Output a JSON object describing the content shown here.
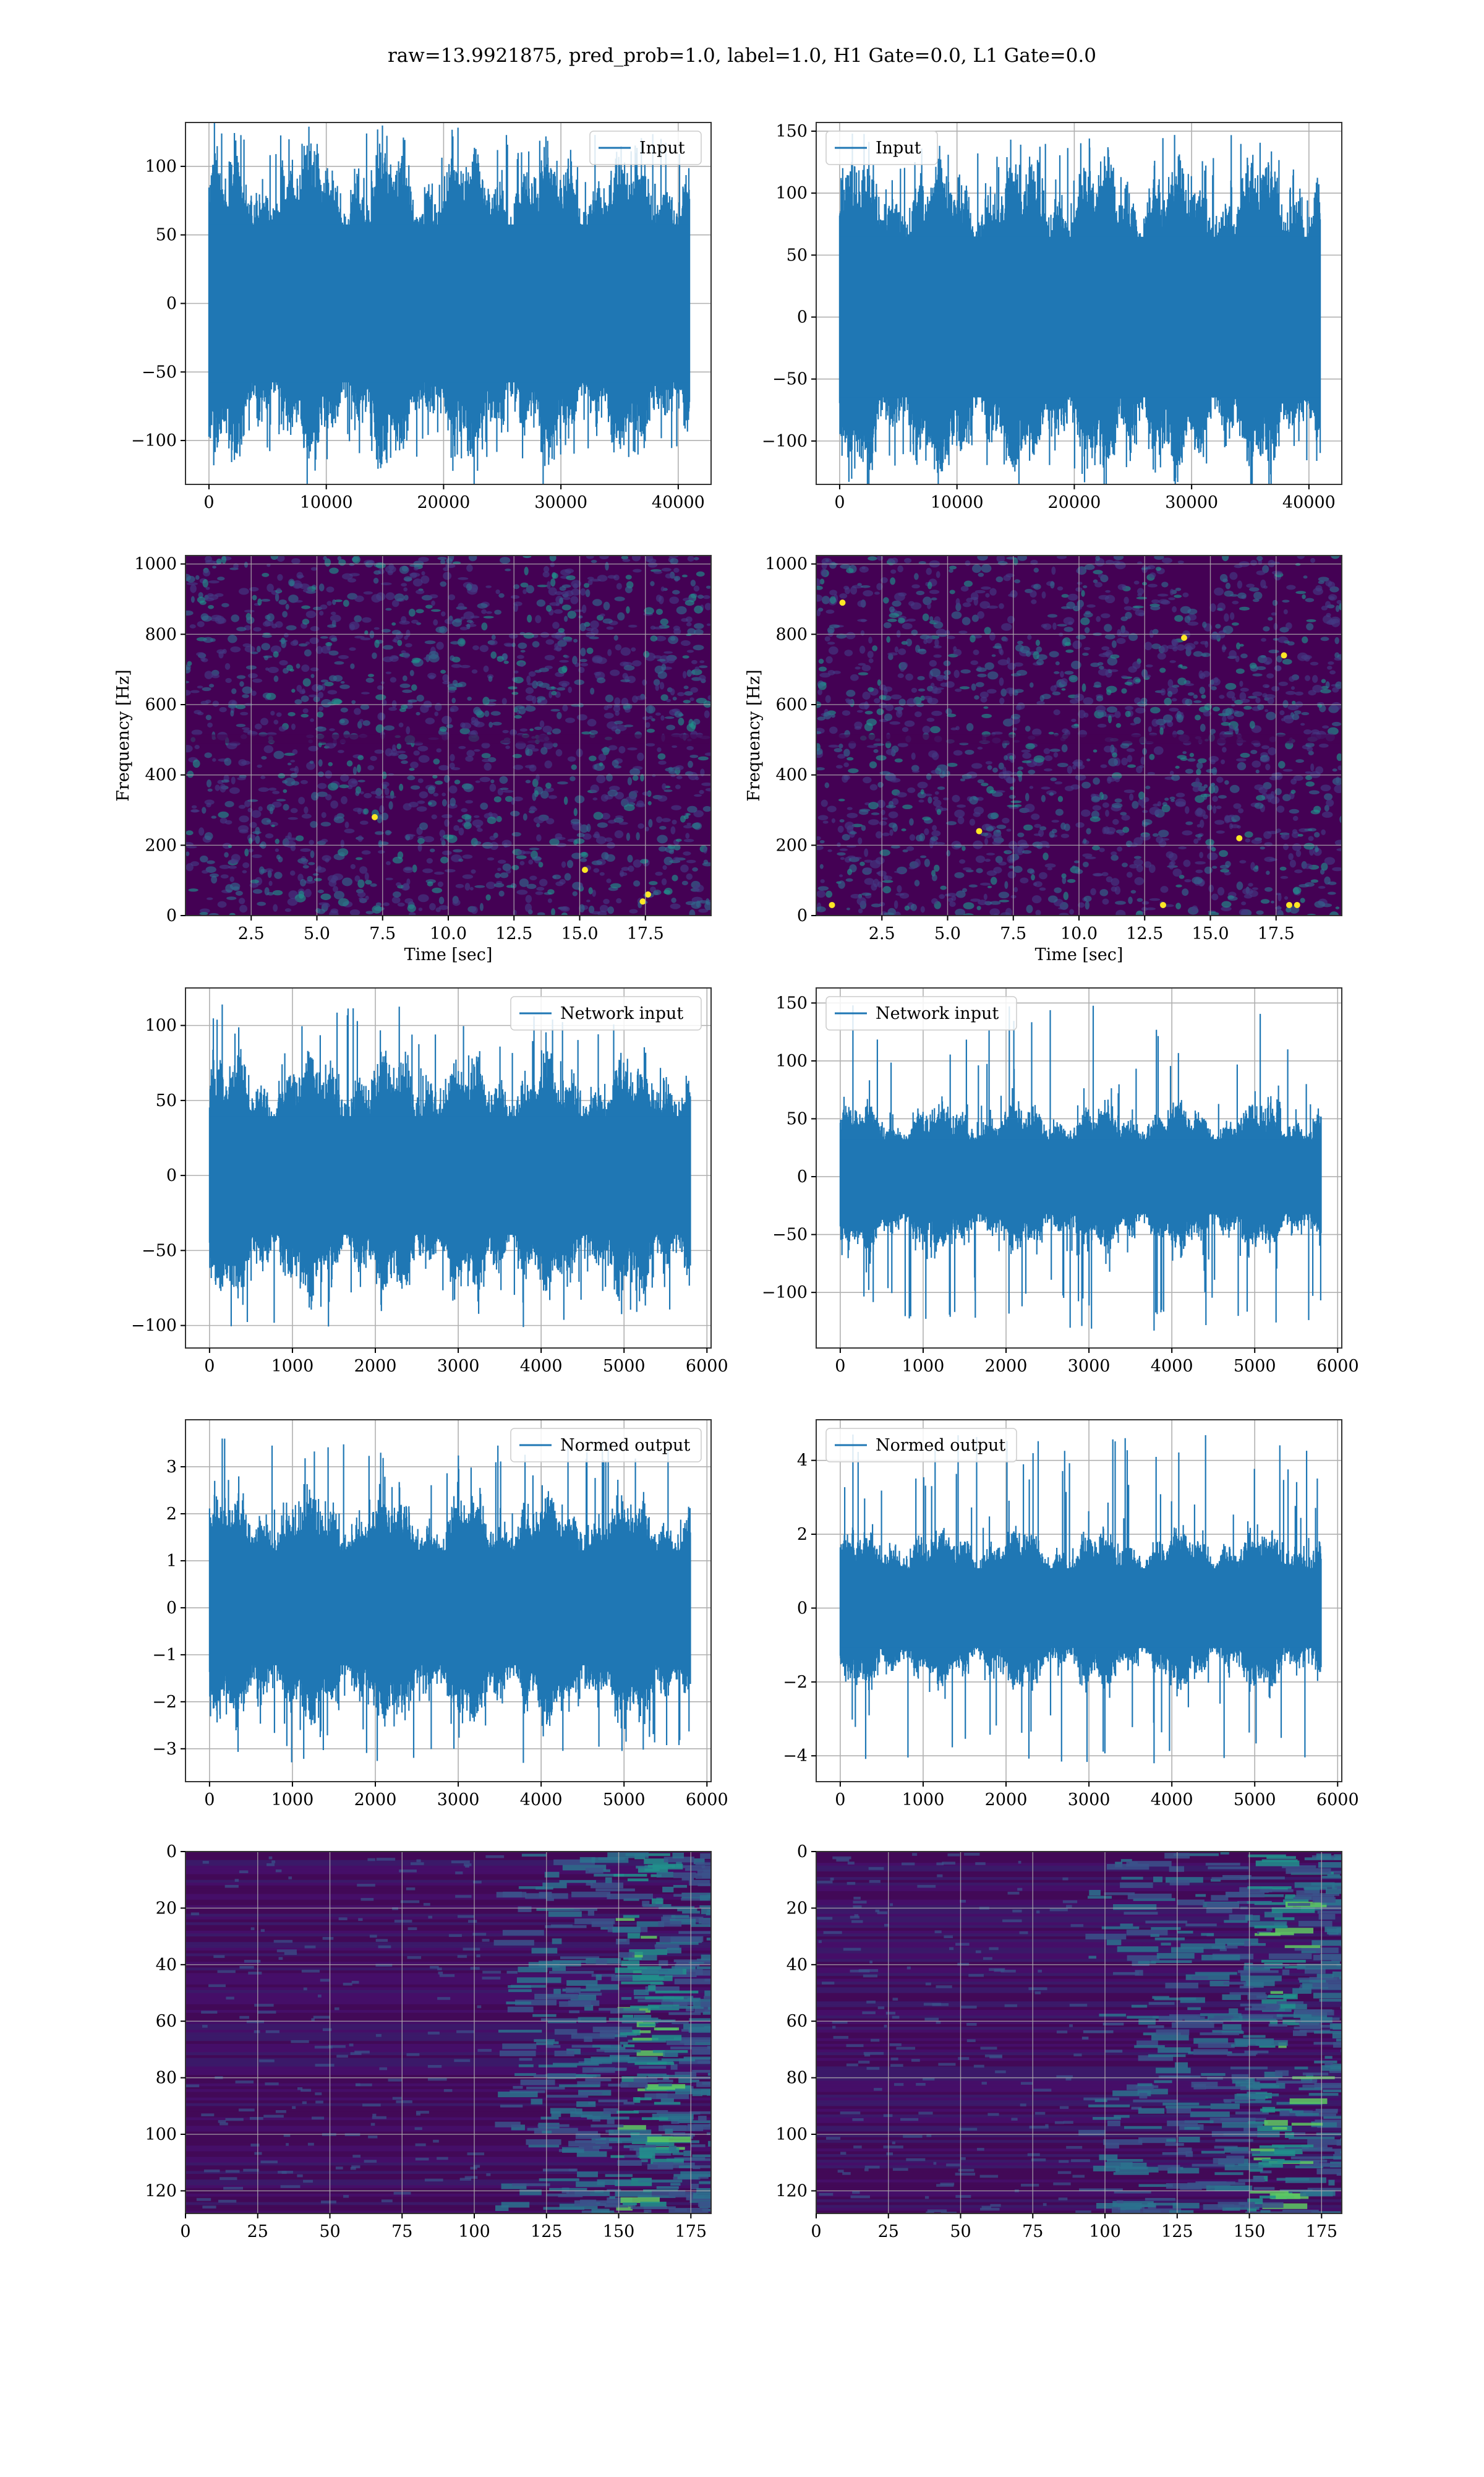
{
  "figure": {
    "suptitle": "raw=13.9921875, pred_prob=1.0, label=1.0, H1 Gate=0.0, L1 Gate=0.0"
  },
  "colors": {
    "series": "#1f77b4",
    "grid": "#b0b0b0",
    "heat_low": "#440154",
    "heat_mid": "#21918c",
    "heat_high": "#fde725"
  },
  "chart_data": [
    {
      "id": "h1-input",
      "type": "line",
      "row": 0,
      "col": 0,
      "legend": [
        "Input"
      ],
      "legend_loc": "upper right",
      "xlim": [
        -2000,
        42800
      ],
      "ylim": [
        -132,
        132
      ],
      "xticks": [
        0,
        10000,
        20000,
        30000,
        40000
      ],
      "xtick_labels": [
        "0",
        "10000",
        "20000",
        "30000",
        "40000"
      ],
      "yticks": [
        -100,
        -50,
        0,
        50,
        100
      ],
      "ytick_labels": [
        "−100",
        "−50",
        "0",
        "50",
        "100"
      ],
      "x_range": [
        0,
        40960
      ],
      "envelope": 80,
      "peak_max": 124,
      "peak_min": -113,
      "grid": true
    },
    {
      "id": "l1-input",
      "type": "line",
      "row": 0,
      "col": 1,
      "legend": [
        "Input"
      ],
      "legend_loc": "upper left",
      "xlim": [
        -2000,
        42800
      ],
      "ylim": [
        -135,
        157
      ],
      "xticks": [
        0,
        10000,
        20000,
        30000,
        40000
      ],
      "xtick_labels": [
        "0",
        "10000",
        "20000",
        "30000",
        "40000"
      ],
      "yticks": [
        -100,
        -50,
        0,
        50,
        100,
        150
      ],
      "ytick_labels": [
        "−100",
        "−50",
        "0",
        "50",
        "100",
        "150"
      ],
      "x_range": [
        0,
        40960
      ],
      "envelope": 90,
      "peak_max": 148,
      "peak_min": -123,
      "grid": true
    },
    {
      "id": "h1-spectrogram",
      "type": "heatmap",
      "row": 1,
      "col": 0,
      "xlabel": "Time [sec]",
      "ylabel": "Frequency [Hz]",
      "xlim": [
        0,
        20
      ],
      "ylim": [
        0,
        1024
      ],
      "xticks": [
        2.5,
        5.0,
        7.5,
        10.0,
        12.5,
        15.0,
        17.5
      ],
      "xtick_labels": [
        "2.5",
        "5.0",
        "7.5",
        "10.0",
        "12.5",
        "15.0",
        "17.5"
      ],
      "yticks": [
        0,
        200,
        400,
        600,
        800,
        1000
      ],
      "ytick_labels": [
        "0",
        "200",
        "400",
        "600",
        "800",
        "1000"
      ],
      "hot_spots": [
        [
          17.6,
          60
        ],
        [
          17.4,
          40
        ],
        [
          15.2,
          130
        ],
        [
          7.2,
          280
        ]
      ],
      "grid": true
    },
    {
      "id": "l1-spectrogram",
      "type": "heatmap",
      "row": 1,
      "col": 1,
      "xlabel": "Time [sec]",
      "ylabel": "Frequency [Hz]",
      "xlim": [
        0,
        20
      ],
      "ylim": [
        0,
        1024
      ],
      "xticks": [
        2.5,
        5.0,
        7.5,
        10.0,
        12.5,
        15.0,
        17.5
      ],
      "xtick_labels": [
        "2.5",
        "5.0",
        "7.5",
        "10.0",
        "12.5",
        "15.0",
        "17.5"
      ],
      "yticks": [
        0,
        200,
        400,
        600,
        800,
        1000
      ],
      "ytick_labels": [
        "0",
        "200",
        "400",
        "600",
        "800",
        "1000"
      ],
      "hot_spots": [
        [
          18.3,
          30
        ],
        [
          18.0,
          30
        ],
        [
          16.1,
          220
        ],
        [
          1.0,
          890
        ],
        [
          17.8,
          740
        ],
        [
          6.2,
          240
        ],
        [
          14.0,
          790
        ],
        [
          0.6,
          30
        ],
        [
          13.2,
          30
        ]
      ],
      "grid": true
    },
    {
      "id": "h1-network-input",
      "type": "line",
      "row": 2,
      "col": 0,
      "legend": [
        "Network input"
      ],
      "legend_loc": "upper right",
      "xlim": [
        -290,
        6050
      ],
      "ylim": [
        -115,
        125
      ],
      "xticks": [
        0,
        1000,
        2000,
        3000,
        4000,
        5000,
        6000
      ],
      "xtick_labels": [
        "0",
        "1000",
        "2000",
        "3000",
        "4000",
        "5000",
        "6000"
      ],
      "yticks": [
        -100,
        -50,
        0,
        50,
        100
      ],
      "ytick_labels": [
        "−100",
        "−50",
        "0",
        "50",
        "100"
      ],
      "x_range": [
        0,
        5800
      ],
      "envelope": 55,
      "peak_max": 114,
      "peak_min": -101,
      "grid": true
    },
    {
      "id": "l1-network-input",
      "type": "line",
      "row": 2,
      "col": 1,
      "legend": [
        "Network input"
      ],
      "legend_loc": "upper left",
      "xlim": [
        -290,
        6050
      ],
      "ylim": [
        -148,
        163
      ],
      "xticks": [
        0,
        1000,
        2000,
        3000,
        4000,
        5000,
        6000
      ],
      "xtick_labels": [
        "0",
        "1000",
        "2000",
        "3000",
        "4000",
        "5000",
        "6000"
      ],
      "yticks": [
        -100,
        -50,
        0,
        50,
        100,
        150
      ],
      "ytick_labels": [
        "−100",
        "−50",
        "0",
        "50",
        "100",
        "150"
      ],
      "x_range": [
        0,
        5800
      ],
      "envelope": 45,
      "peak_max": 148,
      "peak_min": -133,
      "grid": true
    },
    {
      "id": "h1-normed-output",
      "type": "line",
      "row": 3,
      "col": 0,
      "legend": [
        "Normed output"
      ],
      "legend_loc": "upper right",
      "xlim": [
        -290,
        6050
      ],
      "ylim": [
        -3.7,
        4.0
      ],
      "xticks": [
        0,
        1000,
        2000,
        3000,
        4000,
        5000,
        6000
      ],
      "xtick_labels": [
        "0",
        "1000",
        "2000",
        "3000",
        "4000",
        "5000",
        "6000"
      ],
      "yticks": [
        -3,
        -2,
        -1,
        0,
        1,
        2,
        3
      ],
      "ytick_labels": [
        "−3",
        "−2",
        "−1",
        "0",
        "1",
        "2",
        "3"
      ],
      "x_range": [
        0,
        5800
      ],
      "envelope": 1.7,
      "peak_max": 3.6,
      "peak_min": -3.3,
      "grid": true
    },
    {
      "id": "l1-normed-output",
      "type": "line",
      "row": 3,
      "col": 1,
      "legend": [
        "Normed output"
      ],
      "legend_loc": "upper left",
      "xlim": [
        -290,
        6050
      ],
      "ylim": [
        -4.7,
        5.1
      ],
      "xticks": [
        0,
        1000,
        2000,
        3000,
        4000,
        5000,
        6000
      ],
      "xtick_labels": [
        "0",
        "1000",
        "2000",
        "3000",
        "4000",
        "5000",
        "6000"
      ],
      "yticks": [
        -4,
        -2,
        0,
        2,
        4
      ],
      "ytick_labels": [
        "−4",
        "−2",
        "0",
        "2",
        "4"
      ],
      "x_range": [
        0,
        5800
      ],
      "envelope": 1.5,
      "peak_max": 4.7,
      "peak_min": -4.2,
      "grid": true
    },
    {
      "id": "h1-feature-map",
      "type": "heatmap",
      "row": 4,
      "col": 0,
      "xlim": [
        0,
        182
      ],
      "ylim": [
        128,
        0
      ],
      "xticks": [
        0,
        25,
        50,
        75,
        100,
        125,
        150,
        175
      ],
      "xtick_labels": [
        "0",
        "25",
        "50",
        "75",
        "100",
        "125",
        "150",
        "175"
      ],
      "yticks": [
        0,
        20,
        40,
        60,
        80,
        100,
        120
      ],
      "ytick_labels": [
        "0",
        "20",
        "40",
        "60",
        "80",
        "100",
        "120"
      ],
      "active_region": [
        105,
        182
      ],
      "hot_column": 155,
      "grid": true
    },
    {
      "id": "l1-feature-map",
      "type": "heatmap",
      "row": 4,
      "col": 1,
      "xlim": [
        0,
        182
      ],
      "ylim": [
        128,
        0
      ],
      "xticks": [
        0,
        25,
        50,
        75,
        100,
        125,
        150,
        175
      ],
      "xtick_labels": [
        "0",
        "25",
        "50",
        "75",
        "100",
        "125",
        "150",
        "175"
      ],
      "yticks": [
        0,
        20,
        40,
        60,
        80,
        100,
        120
      ],
      "ytick_labels": [
        "0",
        "20",
        "40",
        "60",
        "80",
        "100",
        "120"
      ],
      "active_region": [
        90,
        182
      ],
      "hot_column": 157,
      "grid": true
    }
  ]
}
